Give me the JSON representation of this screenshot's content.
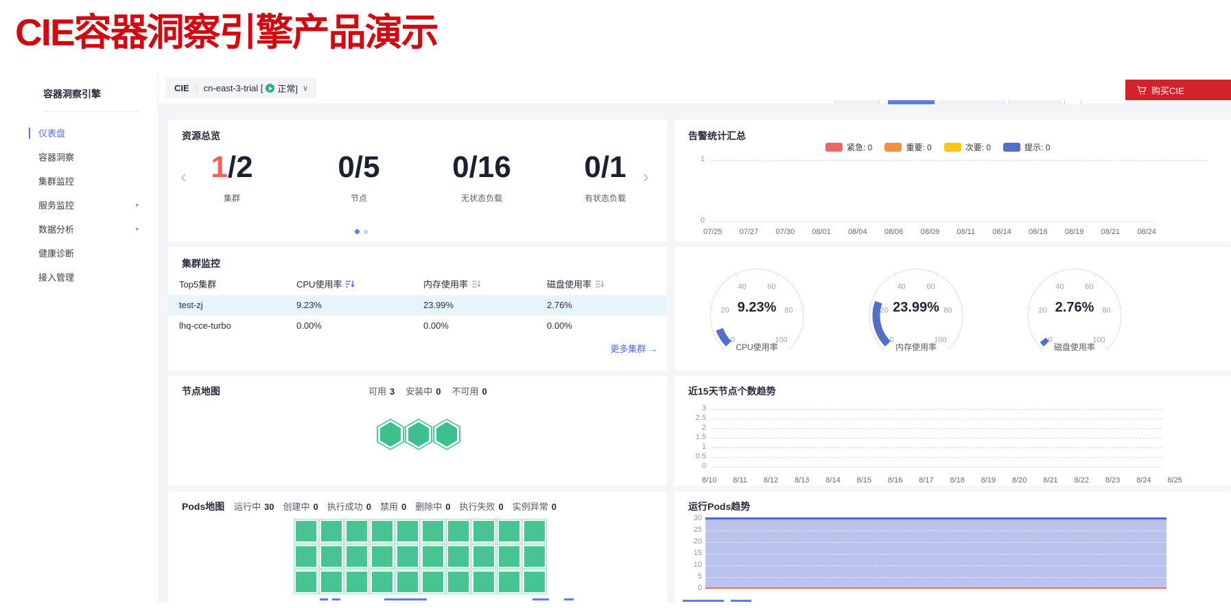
{
  "page_title": "CIE容器洞察引擎产品演示",
  "colors": {
    "title_red": "#d00a10",
    "buy_button_red": "#d4222b",
    "primary_blue": "#5e7ce0",
    "active_nav_blue": "#5670e8",
    "link_blue": "#4f6bdb",
    "gauge_blue": "#5470c6",
    "green": "#47c492",
    "highlight_row": "#e7f5f9",
    "stat_highlight_red": "#f2605a",
    "status_green": "#2fae8a"
  },
  "icons": {
    "dropdown_chevron": "∨",
    "collapse_caret": "▾",
    "carousel_prev": "‹",
    "carousel_next": "›",
    "more_arrow": "→"
  },
  "sidebar": {
    "title": "容器洞察引擎",
    "items": [
      {
        "label": "仪表盘",
        "active": true,
        "has_children": false
      },
      {
        "label": "容器洞察",
        "active": false,
        "has_children": false
      },
      {
        "label": "集群监控",
        "active": false,
        "has_children": false
      },
      {
        "label": "服务监控",
        "active": false,
        "has_children": true
      },
      {
        "label": "数据分析",
        "active": false,
        "has_children": true
      },
      {
        "label": "健康诊断",
        "active": false,
        "has_children": false
      },
      {
        "label": "接入管理",
        "active": false,
        "has_children": false
      }
    ]
  },
  "topbar": {
    "product_tag": "CIE",
    "cluster_label": "cn-east-3-trial [",
    "status_label": "正常]",
    "buy_label": "购买CIE"
  },
  "resource_overview": {
    "title": "资源总览",
    "stats": [
      {
        "highlight": "1",
        "rest": "/2",
        "label": "集群"
      },
      {
        "highlight": "",
        "rest": "0/5",
        "label": "节点"
      },
      {
        "highlight": "",
        "rest": "0/16",
        "label": "无状态负载"
      },
      {
        "highlight": "",
        "rest": "0/1",
        "label": "有状态负载"
      }
    ]
  },
  "alarm_summary": {
    "title": "告警统计汇总",
    "legend": [
      {
        "label": "紧急",
        "count": 0,
        "text": "紧急: 0",
        "color": "#ee6666"
      },
      {
        "label": "重要",
        "count": 0,
        "text": "重要: 0",
        "color": "#f4903a"
      },
      {
        "label": "次要",
        "count": 0,
        "text": "次要: 0",
        "color": "#fac813"
      },
      {
        "label": "提示",
        "count": 0,
        "text": "提示: 0",
        "color": "#5470c6"
      }
    ]
  },
  "cluster_monitor": {
    "title": "集群监控",
    "table": {
      "columns": [
        "Top5集群",
        "CPU使用率",
        "内存使用率",
        "磁盘使用率"
      ],
      "rows": [
        {
          "name": "test-zj",
          "cpu": "9.23%",
          "mem": "23.99%",
          "disk": "2.76%",
          "highlight": true
        },
        {
          "name": "lhq-cce-turbo",
          "cpu": "0.00%",
          "mem": "0.00%",
          "disk": "0.00%",
          "highlight": false
        }
      ]
    },
    "more_link": "更多集群"
  },
  "node_map": {
    "title": "节点地图",
    "statuses": [
      {
        "label": "可用",
        "count": 3
      },
      {
        "label": "安装中",
        "count": 0
      },
      {
        "label": "不可用",
        "count": 0
      }
    ],
    "hex_count": 3
  },
  "node_trend": {
    "title": "近15天节点个数趋势"
  },
  "pods_map": {
    "title": "Pods地图",
    "statuses": [
      {
        "label": "运行中",
        "count": 30
      },
      {
        "label": "创建中",
        "count": 0
      },
      {
        "label": "执行成功",
        "count": 0
      },
      {
        "label": "禁用",
        "count": 0
      },
      {
        "label": "删除中",
        "count": 0
      },
      {
        "label": "执行失败",
        "count": 0
      },
      {
        "label": "实例异常",
        "count": 0
      }
    ],
    "grid": {
      "rows": 3,
      "cols": 10,
      "total": 30
    }
  },
  "pods_trend": {
    "title": "运行Pods趋势"
  },
  "chart_data": [
    {
      "id": "alarm_summary",
      "type": "line",
      "title": "告警统计汇总",
      "categories": [
        "07/25",
        "07/27",
        "07/30",
        "08/01",
        "08/04",
        "08/06",
        "08/09",
        "08/11",
        "08/14",
        "08/16",
        "08/19",
        "08/21",
        "08/24"
      ],
      "series": [
        {
          "name": "紧急",
          "color": "#ee6666",
          "values": [
            0,
            0,
            0,
            0,
            0,
            0,
            0,
            0,
            0,
            0,
            0,
            0,
            0
          ]
        },
        {
          "name": "重要",
          "color": "#f4903a",
          "values": [
            0,
            0,
            0,
            0,
            0,
            0,
            0,
            0,
            0,
            0,
            0,
            0,
            0
          ]
        },
        {
          "name": "次要",
          "color": "#fac813",
          "values": [
            0,
            0,
            0,
            0,
            0,
            0,
            0,
            0,
            0,
            0,
            0,
            0,
            0
          ]
        },
        {
          "name": "提示",
          "color": "#5470c6",
          "values": [
            0,
            0,
            0,
            0,
            0,
            0,
            0,
            0,
            0,
            0,
            0,
            0,
            0
          ]
        }
      ],
      "ylim": [
        0,
        1
      ],
      "yticks": [
        1,
        0
      ],
      "grid": "dashed",
      "legend_position": "top"
    },
    {
      "id": "usage_gauges",
      "type": "gauge",
      "range": [
        0,
        100
      ],
      "ticks": [
        0,
        20,
        40,
        60,
        80,
        100
      ],
      "gauges": [
        {
          "label": "CPU使用率",
          "value": 9.23,
          "display": "9.23%"
        },
        {
          "label": "内存使用率",
          "value": 23.99,
          "display": "23.99%"
        },
        {
          "label": "磁盘使用率",
          "value": 2.76,
          "display": "2.76%"
        }
      ]
    },
    {
      "id": "node_count_trend",
      "type": "line",
      "title": "近15天节点个数趋势",
      "categories": [
        "8/10",
        "8/11",
        "8/12",
        "8/13",
        "8/14",
        "8/15",
        "8/16",
        "8/17",
        "8/18",
        "8/19",
        "8/20",
        "8/21",
        "8/22",
        "8/23",
        "8/24",
        "8/25"
      ],
      "series": [],
      "ylim": [
        0,
        3
      ],
      "yticks": [
        3,
        2.5,
        2,
        1.5,
        1,
        0.5,
        0
      ],
      "grid": "dashed"
    },
    {
      "id": "running_pods_trend",
      "type": "area",
      "title": "运行Pods趋势",
      "series": [
        {
          "name": "",
          "flat_value": 30,
          "color": "#5470c6",
          "area": true
        },
        {
          "name": "",
          "flat_value": 0,
          "color": "#ee6666",
          "area": false
        }
      ],
      "ylim": [
        0,
        30
      ],
      "yticks": [
        30,
        25,
        20,
        15,
        10,
        5,
        0
      ],
      "grid": "dashed",
      "x_axis_visible": false
    }
  ]
}
